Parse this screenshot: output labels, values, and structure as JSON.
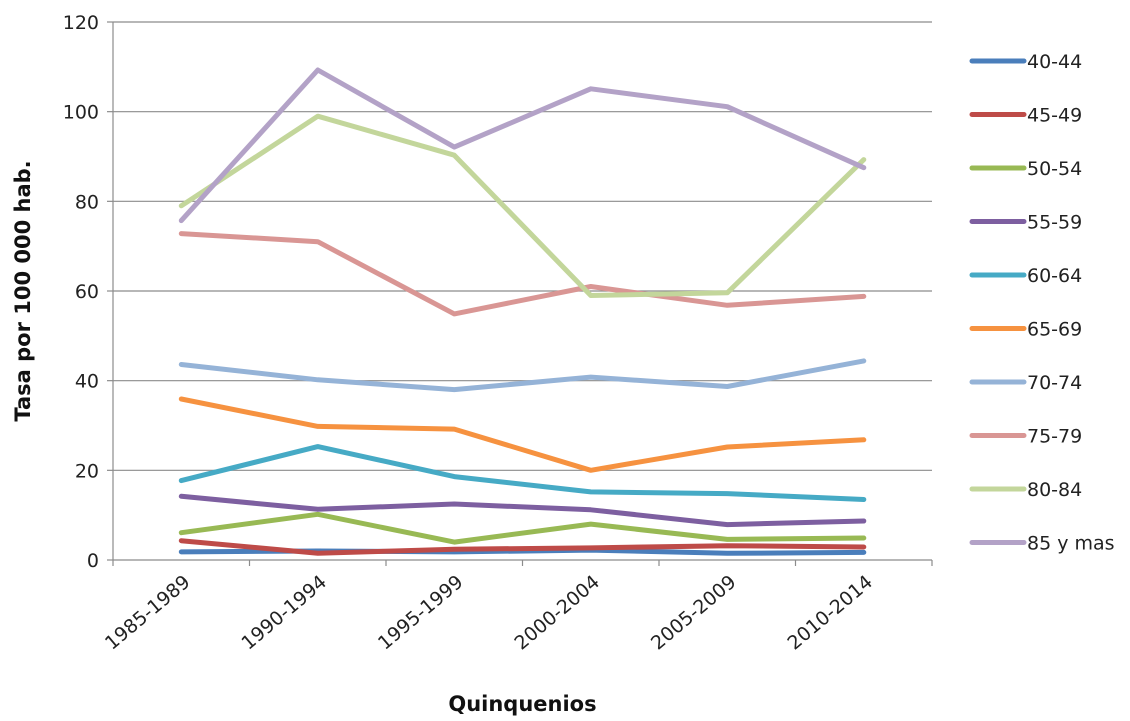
{
  "chart_data": {
    "type": "line",
    "title": "",
    "xlabel": "Quinquenios",
    "ylabel": "Tasa por 100 000 hab.",
    "ylim": [
      0,
      120
    ],
    "yticks": [
      0,
      20,
      40,
      60,
      80,
      100,
      120
    ],
    "grid": "horizontal",
    "legend_position": "right",
    "categories": [
      "1985-1989",
      "1990-1994",
      "1995-1999",
      "2000-2004",
      "2005-2009",
      "2010-2014"
    ],
    "series": [
      {
        "name": "40-44",
        "color": "#4a7ebb",
        "values": [
          1.8,
          2.0,
          1.8,
          2.2,
          1.5,
          1.7
        ]
      },
      {
        "name": "45-49",
        "color": "#be4b48",
        "values": [
          4.3,
          1.5,
          2.4,
          2.7,
          3.2,
          2.9
        ]
      },
      {
        "name": "50-54",
        "color": "#98b954",
        "values": [
          6.1,
          10.2,
          4.0,
          8.0,
          4.6,
          4.9
        ]
      },
      {
        "name": "55-59",
        "color": "#7d5fa0",
        "values": [
          14.2,
          11.3,
          12.5,
          11.2,
          7.9,
          8.7
        ]
      },
      {
        "name": "60-64",
        "color": "#46aac5",
        "values": [
          17.7,
          25.3,
          18.6,
          15.2,
          14.8,
          13.5
        ]
      },
      {
        "name": "65-69",
        "color": "#f69240",
        "values": [
          35.9,
          29.8,
          29.2,
          20.0,
          25.2,
          26.8
        ]
      },
      {
        "name": "70-74",
        "color": "#95b3d7",
        "values": [
          43.6,
          40.2,
          38.0,
          40.8,
          38.7,
          44.4
        ]
      },
      {
        "name": "75-79",
        "color": "#d99694",
        "values": [
          72.8,
          71.0,
          54.9,
          61.0,
          56.8,
          58.8
        ]
      },
      {
        "name": "80-84",
        "color": "#c3d69b",
        "values": [
          79.0,
          99.0,
          90.3,
          59.0,
          59.6,
          89.3
        ]
      },
      {
        "name": "85 y mas",
        "color": "#b3a2c7",
        "values": [
          75.7,
          109.3,
          92.1,
          105.1,
          101.1,
          87.5
        ]
      }
    ]
  }
}
